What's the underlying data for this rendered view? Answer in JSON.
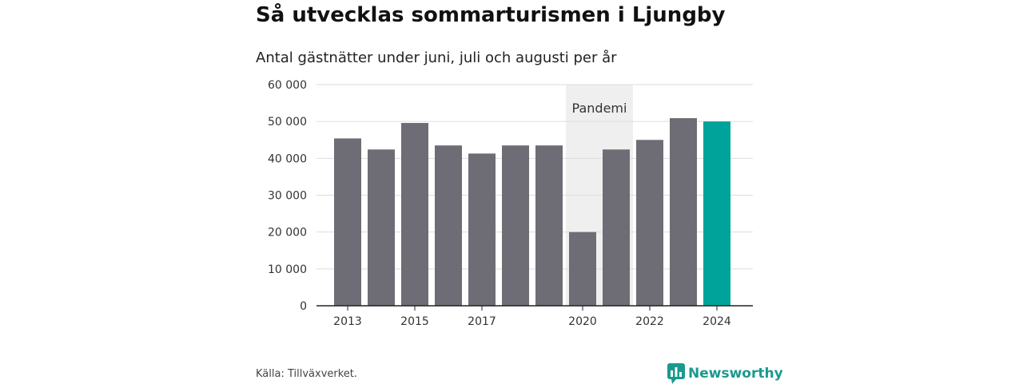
{
  "header": {
    "title": "Så utvecklas sommarturismen i Ljungby",
    "subtitle": "Antal gästnätter under juni, juli och augusti per år"
  },
  "footer": {
    "source": "Källa: Tillväxverket.",
    "brand": "Newsworthy"
  },
  "colors": {
    "bar": "#6e6d75",
    "highlight": "#00a39a",
    "pandemic_band": "#efefef",
    "grid": "#dddddd",
    "brand": "#1a9a8e"
  },
  "icons": {
    "brand_logo": "newsworthy-logo-icon"
  },
  "chart_data": {
    "type": "bar",
    "categories": [
      "2013",
      "2014",
      "2015",
      "2016",
      "2017",
      "2018",
      "2019",
      "2020",
      "2021",
      "2022",
      "2023",
      "2024"
    ],
    "values": [
      45400,
      42400,
      49600,
      43500,
      41300,
      43500,
      43500,
      20000,
      42400,
      45000,
      50900,
      50000
    ],
    "highlight_category": "2024",
    "ylim": [
      0,
      60000
    ],
    "yticks": [
      0,
      10000,
      20000,
      30000,
      40000,
      50000,
      60000
    ],
    "ytick_labels": [
      "0",
      "10 000",
      "20 000",
      "30 000",
      "40 000",
      "50 000",
      "60 000"
    ],
    "xtick_labels": [
      "2013",
      "2015",
      "2017",
      "2020",
      "2022",
      "2024"
    ],
    "grid": true,
    "annotations": [
      {
        "label": "Pandemi",
        "from": "2020",
        "to": "2021"
      }
    ]
  }
}
